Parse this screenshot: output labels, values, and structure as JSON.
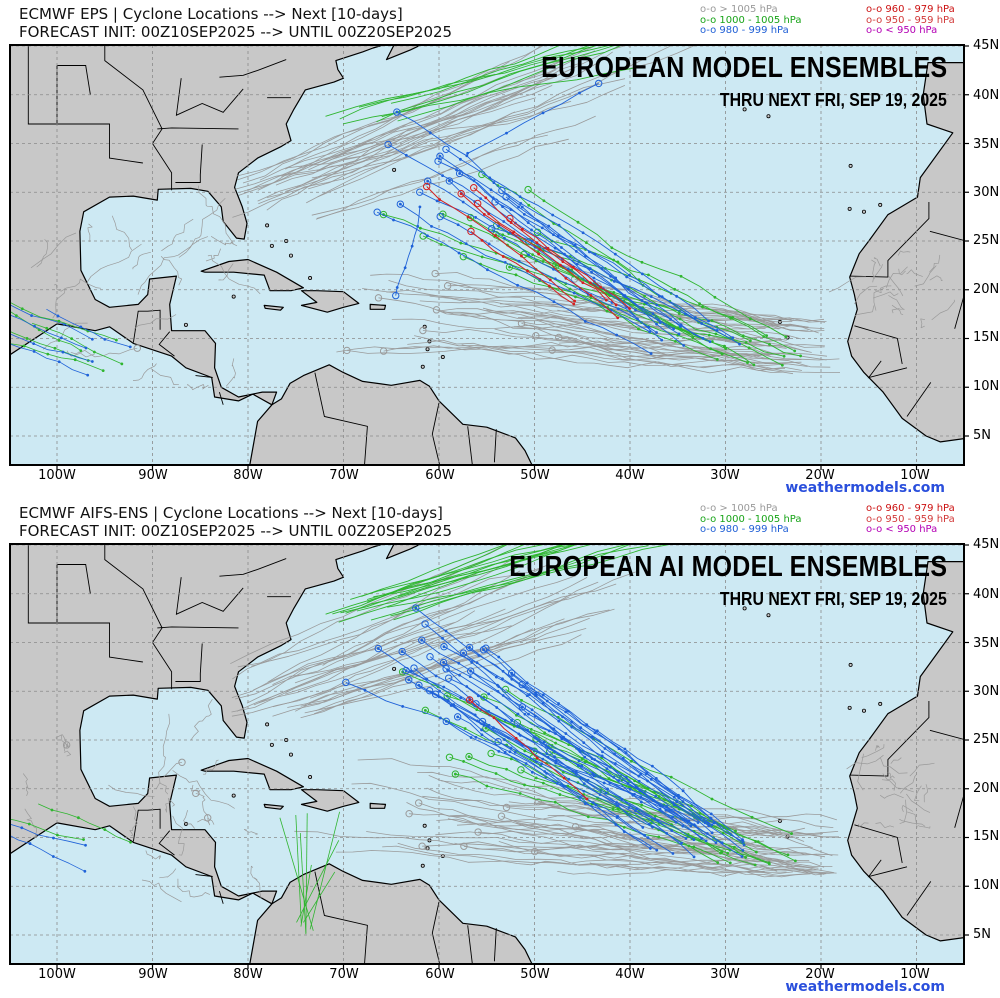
{
  "credit": "weathermodels.com",
  "lat_labels": [
    "45N",
    "40N",
    "35N",
    "30N",
    "25N",
    "20N",
    "15N",
    "10N",
    "5N"
  ],
  "lon_labels": [
    "100W",
    "90W",
    "80W",
    "70W",
    "60W",
    "50W",
    "40W",
    "30W",
    "20W",
    "10W"
  ],
  "legend": {
    "col1": [
      {
        "text": "o-o > 1005 hPa",
        "color": "#9a9a9a"
      },
      {
        "text": "o-o 1000 - 1005 hPa",
        "color": "#18a418"
      },
      {
        "text": "o-o 980 - 999 hPa",
        "color": "#1f5fd6"
      }
    ],
    "col2": [
      {
        "text": "o-o 960 - 979 hPa",
        "color": "#cc1111"
      },
      {
        "text": "o-o 950 - 959 hPa",
        "color": "#d23a3a"
      },
      {
        "text": "o-o < 950 hPa",
        "color": "#b400b4"
      }
    ]
  },
  "colors": {
    "ocean": "#cde9f3",
    "land": "#c8c8c8",
    "grid": "#8a8a8a",
    "track_weak": "#9a9a9a",
    "track_1000": "#2fb52f",
    "track_980": "#1f62d8",
    "track_960": "#d42020"
  },
  "panels": [
    {
      "id": "eps",
      "header_line1": "ECMWF EPS | Cyclone Locations --> Next [10-days]",
      "header_line2": "FORECAST INIT: 00Z10SEP2025 --> UNTIL 00Z20SEP2025",
      "title": "EUROPEAN MODEL ENSEMBLES",
      "subtitle": "THRU NEXT FRI, SEP 19, 2025",
      "red_tracks": 6,
      "blue_tracks": 16,
      "green_tracks": 14
    },
    {
      "id": "aifs",
      "header_line1": "ECMWF AIFS-ENS | Cyclone Locations --> Next [10-days]",
      "header_line2": "FORECAST INIT: 00Z10SEP2025 --> UNTIL 00Z20SEP2025",
      "title": "EUROPEAN AI MODEL ENSEMBLES",
      "subtitle": "THRU NEXT FRI, SEP 19, 2025",
      "red_tracks": 1,
      "blue_tracks": 30,
      "green_tracks": 16
    }
  ]
}
